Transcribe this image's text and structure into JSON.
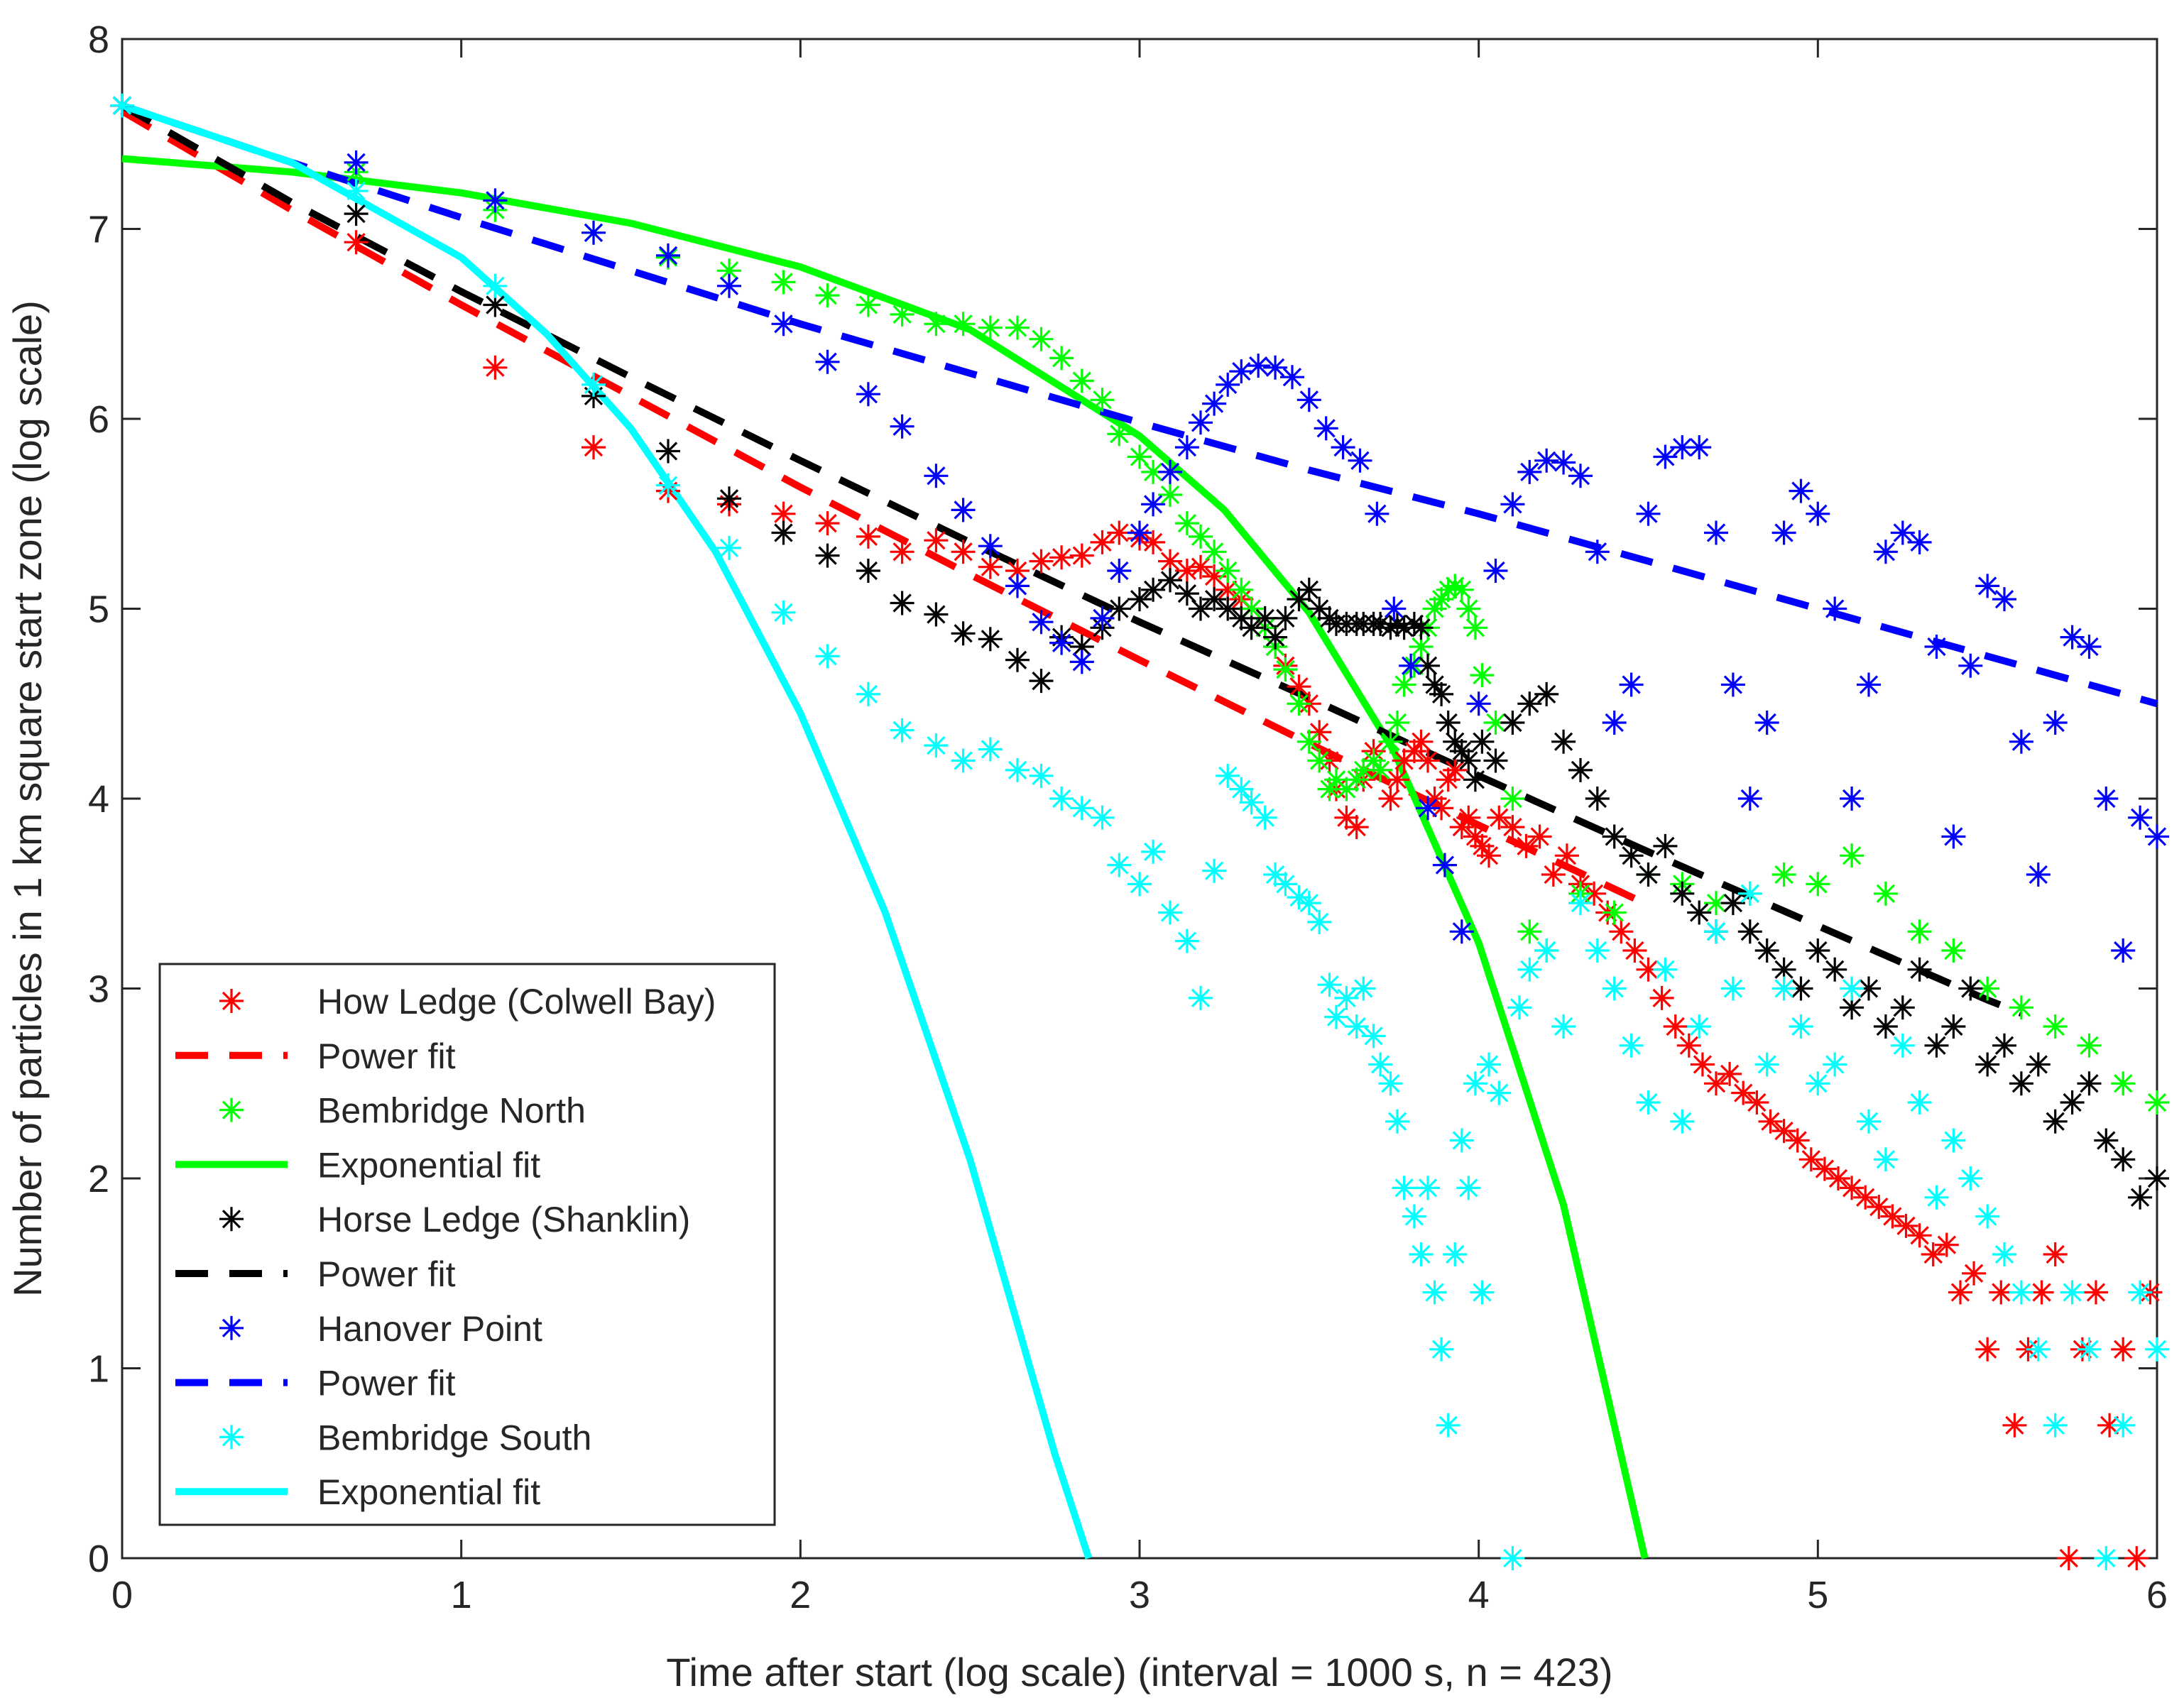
{
  "chart_data": {
    "type": "scatter",
    "title": "",
    "xlabel": "Time after start (log scale) (interval = 1000 s, n = 423)",
    "ylabel": "Number of particles in 1 km square start zone (log scale)",
    "xlim": [
      0,
      6
    ],
    "ylim": [
      0,
      8
    ],
    "xticks": [
      "0",
      "1",
      "2",
      "3",
      "4",
      "5",
      "6"
    ],
    "yticks": [
      "0",
      "1",
      "2",
      "3",
      "4",
      "5",
      "6",
      "7",
      "8"
    ],
    "legend_position": "bottom-left",
    "series": [
      {
        "name": "How Ledge (Colwell Bay)",
        "kind": "points",
        "marker": "asterisk",
        "color": "#ff0000",
        "x": [
          0,
          0.69,
          1.1,
          1.39,
          1.61,
          1.79,
          1.95,
          2.08,
          2.2,
          2.3,
          2.4,
          2.48,
          2.56,
          2.64,
          2.71,
          2.77,
          2.83,
          2.89,
          2.94,
          3.0,
          3.04,
          3.09,
          3.14,
          3.18,
          3.22,
          3.26,
          3.3,
          3.33,
          3.37,
          3.4,
          3.43,
          3.47,
          3.5,
          3.53,
          3.56,
          3.58,
          3.61,
          3.64,
          3.66,
          3.69,
          3.71,
          3.74,
          3.76,
          3.78,
          3.81,
          3.83,
          3.85,
          3.87,
          3.89,
          3.91,
          3.93,
          3.95,
          3.97,
          3.99,
          4.01,
          4.03,
          4.06,
          4.1,
          4.14,
          4.18,
          4.22,
          4.26,
          4.3,
          4.34,
          4.38,
          4.42,
          4.46,
          4.5,
          4.54,
          4.58,
          4.62,
          4.66,
          4.7,
          4.74,
          4.78,
          4.82,
          4.86,
          4.9,
          4.94,
          4.98,
          5.02,
          5.06,
          5.1,
          5.14,
          5.18,
          5.22,
          5.26,
          5.3,
          5.34,
          5.38,
          5.42,
          5.46,
          5.5,
          5.54,
          5.58,
          5.62,
          5.66,
          5.7,
          5.74,
          5.78,
          5.82,
          5.86,
          5.9,
          5.94,
          5.98
        ],
        "y": [
          7.65,
          6.93,
          6.27,
          5.85,
          5.62,
          5.55,
          5.5,
          5.45,
          5.38,
          5.3,
          5.36,
          5.3,
          5.22,
          5.2,
          5.25,
          5.27,
          5.28,
          5.35,
          5.4,
          5.37,
          5.35,
          5.25,
          5.2,
          5.22,
          5.17,
          5.1,
          5.05,
          5.0,
          4.9,
          4.8,
          4.7,
          4.59,
          4.5,
          4.35,
          4.2,
          4.05,
          3.9,
          3.85,
          4.1,
          4.25,
          4.15,
          4.0,
          4.1,
          4.2,
          4.25,
          4.3,
          4.2,
          4.0,
          3.95,
          4.1,
          4.15,
          3.85,
          3.9,
          3.8,
          3.75,
          3.7,
          3.9,
          3.85,
          3.75,
          3.8,
          3.6,
          3.7,
          3.55,
          3.5,
          3.4,
          3.3,
          3.2,
          3.1,
          2.95,
          2.8,
          2.7,
          2.6,
          2.5,
          2.55,
          2.45,
          2.4,
          2.3,
          2.25,
          2.2,
          2.1,
          2.05,
          2.0,
          1.95,
          1.9,
          1.85,
          1.8,
          1.75,
          1.7,
          1.6,
          1.65,
          1.4,
          1.5,
          1.1,
          1.4,
          0.7,
          1.1,
          1.4,
          1.6,
          0.0,
          1.1,
          1.4,
          0.7,
          1.1,
          0.0,
          1.4
        ]
      },
      {
        "name": "Power fit",
        "kind": "line",
        "dash": "dashed",
        "color": "#ff0000",
        "x": [
          0,
          0.5,
          1.0,
          1.5,
          2.0,
          2.5,
          3.0,
          3.5,
          4.0,
          4.5
        ],
        "y": [
          7.62,
          7.1,
          6.6,
          6.12,
          5.64,
          5.18,
          4.73,
          4.29,
          3.86,
          3.44
        ]
      },
      {
        "name": "Bembridge North",
        "kind": "points",
        "marker": "asterisk",
        "color": "#00ff00",
        "x": [
          0,
          0.69,
          1.1,
          1.39,
          1.61,
          1.79,
          1.95,
          2.08,
          2.2,
          2.3,
          2.4,
          2.48,
          2.56,
          2.64,
          2.71,
          2.77,
          2.83,
          2.89,
          2.94,
          3.0,
          3.04,
          3.09,
          3.14,
          3.18,
          3.22,
          3.26,
          3.3,
          3.33,
          3.37,
          3.4,
          3.43,
          3.47,
          3.5,
          3.53,
          3.56,
          3.58,
          3.61,
          3.64,
          3.66,
          3.69,
          3.71,
          3.74,
          3.76,
          3.78,
          3.81,
          3.83,
          3.85,
          3.87,
          3.89,
          3.91,
          3.93,
          3.95,
          3.97,
          3.99,
          4.01,
          4.05,
          4.1,
          4.15,
          4.2,
          4.3,
          4.4,
          4.5,
          4.6,
          4.7,
          4.8,
          4.9,
          5.0,
          5.1,
          5.2,
          5.3,
          5.4,
          5.5,
          5.6,
          5.7,
          5.8,
          5.9,
          6.0
        ],
        "y": [
          7.65,
          7.3,
          7.1,
          6.98,
          6.85,
          6.78,
          6.72,
          6.65,
          6.6,
          6.55,
          6.5,
          6.5,
          6.48,
          6.48,
          6.42,
          6.32,
          6.2,
          6.1,
          5.92,
          5.8,
          5.72,
          5.6,
          5.45,
          5.38,
          5.3,
          5.2,
          5.1,
          5.0,
          4.9,
          4.8,
          4.68,
          4.5,
          4.3,
          4.2,
          4.05,
          4.1,
          4.05,
          4.1,
          4.15,
          4.2,
          4.15,
          4.3,
          4.4,
          4.6,
          4.7,
          4.8,
          4.9,
          5.0,
          5.05,
          5.1,
          5.12,
          5.1,
          5.0,
          4.9,
          4.65,
          4.4,
          4.0,
          3.3,
          3.2,
          3.5,
          3.4,
          3.6,
          3.55,
          3.45,
          3.5,
          3.6,
          3.55,
          3.7,
          3.5,
          3.3,
          3.2,
          3.0,
          2.9,
          2.8,
          2.7,
          2.5,
          2.4
        ]
      },
      {
        "name": "Exponential fit",
        "kind": "line",
        "dash": "solid",
        "color": "#00ff00",
        "x": [
          0,
          0.5,
          1.0,
          1.5,
          2.0,
          2.5,
          3.0,
          3.25,
          3.5,
          3.75,
          4.0,
          4.25,
          4.49
        ],
        "y": [
          7.37,
          7.3,
          7.19,
          7.03,
          6.8,
          6.47,
          5.91,
          5.52,
          4.98,
          4.25,
          3.24,
          1.86,
          0.0
        ]
      },
      {
        "name": "Horse Ledge (Shanklin)",
        "kind": "points",
        "marker": "asterisk",
        "color": "#000000",
        "x": [
          0,
          0.69,
          1.1,
          1.39,
          1.61,
          1.79,
          1.95,
          2.08,
          2.2,
          2.3,
          2.4,
          2.48,
          2.56,
          2.64,
          2.71,
          2.77,
          2.83,
          2.89,
          2.94,
          3.0,
          3.04,
          3.09,
          3.14,
          3.18,
          3.22,
          3.26,
          3.3,
          3.33,
          3.37,
          3.4,
          3.43,
          3.47,
          3.5,
          3.53,
          3.56,
          3.58,
          3.61,
          3.64,
          3.66,
          3.69,
          3.71,
          3.74,
          3.76,
          3.78,
          3.81,
          3.83,
          3.85,
          3.87,
          3.89,
          3.91,
          3.93,
          3.95,
          3.97,
          3.99,
          4.01,
          4.05,
          4.1,
          4.15,
          4.2,
          4.25,
          4.3,
          4.35,
          4.4,
          4.45,
          4.5,
          4.55,
          4.6,
          4.65,
          4.7,
          4.75,
          4.8,
          4.85,
          4.9,
          4.95,
          5.0,
          5.05,
          5.1,
          5.15,
          5.2,
          5.25,
          5.3,
          5.35,
          5.4,
          5.45,
          5.5,
          5.55,
          5.6,
          5.65,
          5.7,
          5.75,
          5.8,
          5.85,
          5.9,
          5.95,
          6.0
        ],
        "y": [
          7.65,
          7.08,
          6.6,
          6.12,
          5.83,
          5.58,
          5.4,
          5.28,
          5.2,
          5.03,
          4.97,
          4.87,
          4.84,
          4.73,
          4.62,
          4.85,
          4.8,
          4.9,
          5.0,
          5.05,
          5.1,
          5.15,
          5.08,
          5.0,
          5.05,
          5.0,
          4.95,
          4.9,
          4.95,
          4.85,
          4.95,
          5.05,
          5.1,
          5.0,
          4.95,
          4.92,
          4.92,
          4.92,
          4.92,
          4.92,
          4.92,
          4.9,
          4.92,
          4.9,
          4.92,
          4.9,
          4.7,
          4.6,
          4.55,
          4.4,
          4.3,
          4.25,
          4.2,
          4.1,
          4.3,
          4.2,
          4.4,
          4.5,
          4.55,
          4.3,
          4.15,
          4.0,
          3.8,
          3.7,
          3.6,
          3.75,
          3.5,
          3.4,
          3.3,
          3.45,
          3.3,
          3.2,
          3.1,
          3.0,
          3.2,
          3.1,
          2.9,
          3.0,
          2.8,
          2.9,
          3.1,
          2.7,
          2.8,
          3.0,
          2.6,
          2.7,
          2.5,
          2.6,
          2.3,
          2.4,
          2.5,
          2.2,
          2.1,
          1.9,
          2.0
        ]
      },
      {
        "name": "Power fit",
        "kind": "line",
        "dash": "dashed",
        "color": "#000000",
        "x": [
          0,
          0.5,
          1.0,
          1.5,
          2.0,
          2.5,
          3.0,
          3.5,
          4.0,
          4.5,
          5.0,
          5.5,
          5.6
        ],
        "y": [
          7.65,
          7.14,
          6.67,
          6.22,
          5.78,
          5.35,
          4.93,
          4.53,
          4.12,
          3.72,
          3.33,
          2.94,
          2.87
        ]
      },
      {
        "name": "Hanover Point",
        "kind": "points",
        "marker": "asterisk",
        "color": "#0000ff",
        "x": [
          0,
          0.69,
          1.1,
          1.39,
          1.61,
          1.79,
          1.95,
          2.08,
          2.2,
          2.3,
          2.4,
          2.48,
          2.56,
          2.64,
          2.71,
          2.77,
          2.83,
          2.89,
          2.94,
          3.0,
          3.04,
          3.09,
          3.14,
          3.18,
          3.22,
          3.26,
          3.3,
          3.35,
          3.4,
          3.45,
          3.5,
          3.55,
          3.6,
          3.65,
          3.7,
          3.75,
          3.8,
          3.85,
          3.9,
          3.95,
          4.0,
          4.05,
          4.1,
          4.15,
          4.2,
          4.25,
          4.3,
          4.35,
          4.4,
          4.45,
          4.5,
          4.55,
          4.6,
          4.65,
          4.7,
          4.75,
          4.8,
          4.85,
          4.9,
          4.95,
          5.0,
          5.05,
          5.1,
          5.15,
          5.2,
          5.25,
          5.3,
          5.35,
          5.4,
          5.45,
          5.5,
          5.55,
          5.6,
          5.65,
          5.7,
          5.75,
          5.8,
          5.85,
          5.9,
          5.95,
          6.0
        ],
        "y": [
          7.65,
          7.35,
          7.15,
          6.98,
          6.86,
          6.7,
          6.5,
          6.3,
          6.13,
          5.96,
          5.7,
          5.52,
          5.33,
          5.12,
          4.93,
          4.82,
          4.72,
          4.95,
          5.2,
          5.4,
          5.55,
          5.72,
          5.85,
          5.98,
          6.08,
          6.18,
          6.25,
          6.28,
          6.27,
          6.22,
          6.1,
          5.95,
          5.85,
          5.78,
          5.5,
          5.0,
          4.7,
          3.95,
          3.65,
          3.3,
          4.5,
          5.2,
          5.55,
          5.72,
          5.78,
          5.77,
          5.7,
          5.3,
          4.4,
          4.6,
          5.5,
          5.8,
          5.85,
          5.85,
          5.4,
          4.6,
          4.0,
          4.4,
          5.4,
          5.62,
          5.5,
          5.0,
          4.0,
          4.6,
          5.3,
          5.4,
          5.35,
          4.8,
          3.8,
          4.7,
          5.12,
          5.05,
          4.3,
          3.6,
          4.4,
          4.85,
          4.8,
          4.0,
          3.2,
          3.9,
          3.8
        ]
      },
      {
        "name": "Power fit",
        "kind": "line",
        "dash": "dashed",
        "color": "#0000ff",
        "x": [
          0,
          0.5,
          1.0,
          1.5,
          2.0,
          2.5,
          3.0,
          3.5,
          4.0,
          4.5,
          5.0,
          5.5,
          6.0
        ],
        "y": [
          7.65,
          7.35,
          7.06,
          6.78,
          6.5,
          6.24,
          5.98,
          5.73,
          5.5,
          5.25,
          5.0,
          4.75,
          4.5
        ]
      },
      {
        "name": "Bembridge South",
        "kind": "points",
        "marker": "asterisk",
        "color": "#00ffff",
        "x": [
          0,
          0.69,
          1.1,
          1.39,
          1.61,
          1.79,
          1.95,
          2.08,
          2.2,
          2.3,
          2.4,
          2.48,
          2.56,
          2.64,
          2.71,
          2.77,
          2.83,
          2.89,
          2.94,
          3.0,
          3.04,
          3.09,
          3.14,
          3.18,
          3.22,
          3.26,
          3.3,
          3.33,
          3.37,
          3.4,
          3.43,
          3.47,
          3.5,
          3.53,
          3.56,
          3.58,
          3.61,
          3.64,
          3.66,
          3.69,
          3.71,
          3.74,
          3.76,
          3.78,
          3.81,
          3.83,
          3.85,
          3.87,
          3.89,
          3.91,
          3.93,
          3.95,
          3.97,
          3.99,
          4.01,
          4.03,
          4.06,
          4.1,
          4.12,
          4.15,
          4.2,
          4.25,
          4.3,
          4.35,
          4.4,
          4.45,
          4.5,
          4.55,
          4.6,
          4.65,
          4.7,
          4.75,
          4.8,
          4.85,
          4.9,
          4.95,
          5.0,
          5.05,
          5.1,
          5.15,
          5.2,
          5.25,
          5.3,
          5.35,
          5.4,
          5.45,
          5.5,
          5.55,
          5.6,
          5.65,
          5.7,
          5.75,
          5.8,
          5.85,
          5.9,
          5.95,
          6.0
        ],
        "y": [
          7.65,
          7.2,
          6.7,
          6.18,
          5.65,
          5.32,
          4.98,
          4.75,
          4.55,
          4.36,
          4.28,
          4.2,
          4.26,
          4.15,
          4.12,
          4.0,
          3.95,
          3.9,
          3.65,
          3.55,
          3.72,
          3.4,
          3.25,
          2.95,
          3.62,
          4.12,
          4.05,
          3.98,
          3.9,
          3.6,
          3.55,
          3.48,
          3.45,
          3.35,
          3.02,
          2.85,
          2.95,
          2.8,
          3.0,
          2.75,
          2.6,
          2.5,
          2.3,
          1.95,
          1.8,
          1.6,
          1.95,
          1.4,
          1.1,
          0.7,
          1.6,
          2.2,
          1.95,
          2.5,
          1.4,
          2.6,
          2.45,
          0.0,
          2.9,
          3.1,
          3.2,
          2.8,
          3.45,
          3.2,
          3.0,
          2.7,
          2.4,
          3.1,
          2.3,
          2.8,
          3.3,
          3.0,
          3.5,
          2.6,
          3.0,
          2.8,
          2.5,
          2.6,
          3.0,
          2.3,
          2.1,
          2.7,
          2.4,
          1.9,
          2.2,
          2.0,
          1.8,
          1.6,
          1.4,
          1.1,
          0.7,
          1.4,
          1.1,
          0.0,
          0.7,
          1.4,
          1.1
        ]
      },
      {
        "name": "Exponential fit",
        "kind": "line",
        "dash": "solid",
        "color": "#00ffff",
        "x": [
          0,
          0.5,
          1.0,
          1.25,
          1.5,
          1.75,
          2.0,
          2.25,
          2.5,
          2.75,
          2.85
        ],
        "y": [
          7.65,
          7.35,
          6.85,
          6.45,
          5.95,
          5.3,
          4.45,
          3.4,
          2.1,
          0.55,
          0.0
        ]
      }
    ]
  }
}
